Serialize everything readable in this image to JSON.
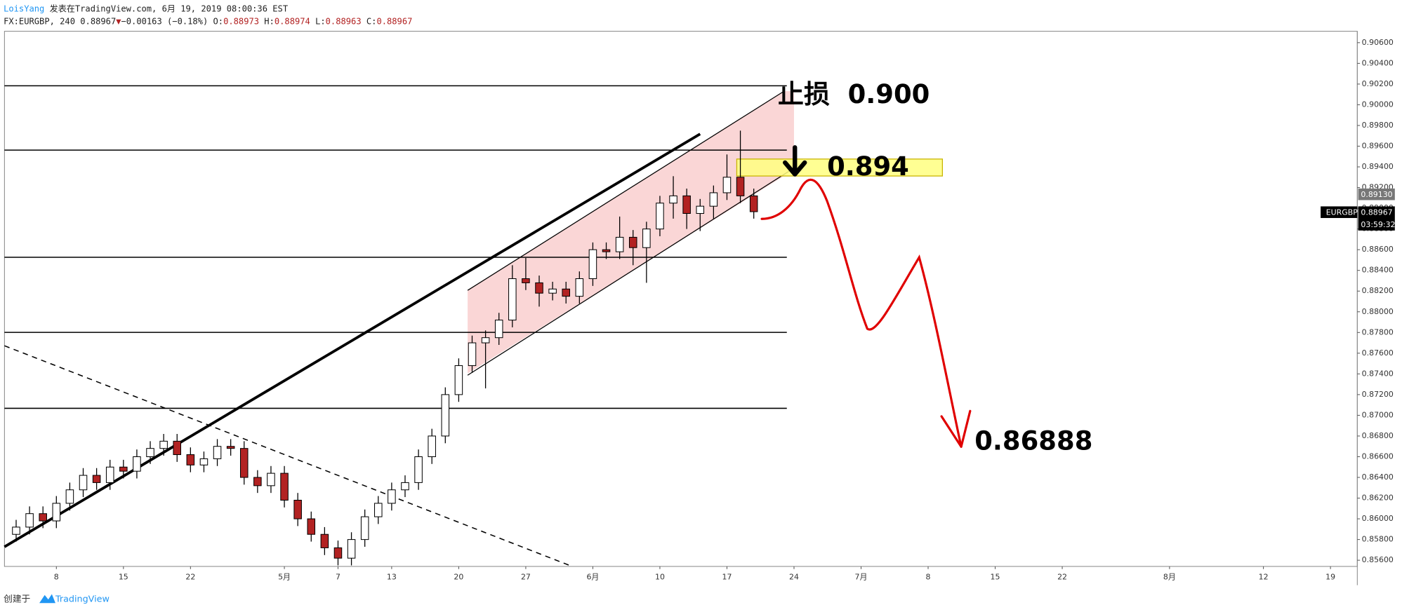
{
  "header": {
    "author": "LoisYang",
    "published": " 发表在TradingView.com, 6月 19, 2019 08:00:36 EST",
    "symbol": "FX:EURGBP, 240 0.88967",
    "arrow": "▼",
    "change": "−0.00163 (−0.18%)",
    "ohlc": [
      "O:",
      "0.88973",
      "H:",
      "0.88974",
      "L:",
      "0.88963",
      "C:",
      "0.88967"
    ]
  },
  "chart_data": {
    "type": "candlestick",
    "up_color": "#ffffff",
    "down_color": "#b22222",
    "wick_color": "#000000",
    "grid": false,
    "x": [
      -3,
      -2,
      -1,
      0,
      1,
      2,
      3,
      4,
      5,
      6,
      7,
      8,
      9,
      10,
      11,
      12,
      13,
      14,
      15,
      16,
      17,
      18,
      19,
      20,
      21,
      22,
      23,
      24,
      25,
      26,
      27,
      28,
      29,
      30,
      31,
      32,
      33,
      34,
      35,
      36,
      37,
      38,
      39,
      40,
      41,
      42,
      43,
      44,
      45,
      46,
      47,
      48,
      49,
      50,
      51,
      52
    ],
    "open": [
      0.8585,
      0.8592,
      0.8605,
      0.8598,
      0.8615,
      0.8628,
      0.8642,
      0.8635,
      0.865,
      0.8646,
      0.866,
      0.8668,
      0.8675,
      0.8662,
      0.8652,
      0.8658,
      0.867,
      0.8668,
      0.864,
      0.8632,
      0.8644,
      0.8618,
      0.86,
      0.8585,
      0.8572,
      0.8562,
      0.858,
      0.8602,
      0.8615,
      0.8628,
      0.8635,
      0.866,
      0.868,
      0.872,
      0.8748,
      0.877,
      0.8775,
      0.8792,
      0.8832,
      0.8828,
      0.8818,
      0.8822,
      0.8815,
      0.8832,
      0.886,
      0.8858,
      0.8872,
      0.8862,
      0.888,
      0.8905,
      0.8912,
      0.8895,
      0.8902,
      0.8915,
      0.893,
      0.8912
    ],
    "high": [
      0.8599,
      0.8612,
      0.8612,
      0.8622,
      0.8635,
      0.8649,
      0.8649,
      0.8657,
      0.8657,
      0.8667,
      0.8675,
      0.8682,
      0.8682,
      0.8669,
      0.8665,
      0.8677,
      0.8677,
      0.8675,
      0.8647,
      0.8651,
      0.8651,
      0.8625,
      0.8607,
      0.8592,
      0.8579,
      0.8587,
      0.8609,
      0.8622,
      0.8635,
      0.8642,
      0.8667,
      0.8687,
      0.8727,
      0.8755,
      0.8777,
      0.8782,
      0.8799,
      0.8845,
      0.8852,
      0.8835,
      0.8829,
      0.8829,
      0.8839,
      0.8867,
      0.8867,
      0.8892,
      0.8879,
      0.8887,
      0.8912,
      0.8931,
      0.8919,
      0.8909,
      0.8922,
      0.8952,
      0.8975,
      0.8919
    ],
    "low": [
      0.8578,
      0.8585,
      0.8591,
      0.8591,
      0.8608,
      0.8621,
      0.8628,
      0.8628,
      0.8639,
      0.8639,
      0.8653,
      0.8661,
      0.8655,
      0.8645,
      0.8645,
      0.8651,
      0.8661,
      0.8633,
      0.8625,
      0.8625,
      0.8611,
      0.8593,
      0.8578,
      0.8565,
      0.8555,
      0.8555,
      0.8573,
      0.8595,
      0.8608,
      0.8621,
      0.8628,
      0.8653,
      0.8673,
      0.8713,
      0.8741,
      0.8726,
      0.8768,
      0.8785,
      0.8821,
      0.8805,
      0.8811,
      0.8808,
      0.8808,
      0.8825,
      0.8851,
      0.8851,
      0.8845,
      0.8828,
      0.8873,
      0.889,
      0.888,
      0.8878,
      0.889,
      0.8908,
      0.8905,
      0.889
    ],
    "close": [
      0.8592,
      0.8605,
      0.8598,
      0.8615,
      0.8628,
      0.8642,
      0.8635,
      0.865,
      0.8646,
      0.866,
      0.8668,
      0.8675,
      0.8662,
      0.8652,
      0.8658,
      0.867,
      0.8668,
      0.864,
      0.8632,
      0.8644,
      0.8618,
      0.86,
      0.8585,
      0.8572,
      0.8562,
      0.858,
      0.8602,
      0.8615,
      0.8628,
      0.8635,
      0.866,
      0.868,
      0.872,
      0.8748,
      0.877,
      0.8775,
      0.8792,
      0.8832,
      0.8828,
      0.8818,
      0.8822,
      0.8815,
      0.8832,
      0.886,
      0.8858,
      0.8872,
      0.8862,
      0.888,
      0.8905,
      0.8912,
      0.8895,
      0.8902,
      0.8915,
      0.893,
      0.8912,
      0.88967
    ],
    "xlim": [
      -3.87,
      97
    ],
    "xticks": [
      {
        "value": 0,
        "label": "8"
      },
      {
        "value": 5,
        "label": "15"
      },
      {
        "value": 10,
        "label": "22"
      },
      {
        "value": 17,
        "label": "5月"
      },
      {
        "value": 21,
        "label": "7"
      },
      {
        "value": 25,
        "label": "13"
      },
      {
        "value": 30,
        "label": "20"
      },
      {
        "value": 35,
        "label": "27"
      },
      {
        "value": 40,
        "label": "6月"
      },
      {
        "value": 45,
        "label": "10"
      },
      {
        "value": 50,
        "label": "17"
      },
      {
        "value": 55,
        "label": "24"
      },
      {
        "value": 60,
        "label": "7月"
      },
      {
        "value": 65,
        "label": "8"
      },
      {
        "value": 70,
        "label": "15"
      },
      {
        "value": 75,
        "label": "22"
      },
      {
        "value": 83,
        "label": "8月"
      },
      {
        "value": 90,
        "label": "12"
      },
      {
        "value": 95,
        "label": "19"
      }
    ],
    "ylim": [
      0.8554,
      0.9071
    ],
    "yticks": [
      {
        "value": 0.856,
        "label": "0.85600"
      },
      {
        "value": 0.858,
        "label": "0.85800"
      },
      {
        "value": 0.86,
        "label": "0.86000"
      },
      {
        "value": 0.862,
        "label": "0.86200"
      },
      {
        "value": 0.864,
        "label": "0.86400"
      },
      {
        "value": 0.866,
        "label": "0.86600"
      },
      {
        "value": 0.868,
        "label": "0.86800"
      },
      {
        "value": 0.87,
        "label": "0.87000"
      },
      {
        "value": 0.872,
        "label": "0.87200"
      },
      {
        "value": 0.874,
        "label": "0.87400"
      },
      {
        "value": 0.876,
        "label": "0.87600"
      },
      {
        "value": 0.878,
        "label": "0.87800"
      },
      {
        "value": 0.88,
        "label": "0.88000"
      },
      {
        "value": 0.882,
        "label": "0.88200"
      },
      {
        "value": 0.884,
        "label": "0.88400"
      },
      {
        "value": 0.886,
        "label": "0.88600"
      },
      {
        "value": 0.888,
        "label": "0.88800"
      },
      {
        "value": 0.89,
        "label": "0.89000"
      },
      {
        "value": 0.892,
        "label": "0.89200"
      },
      {
        "value": 0.894,
        "label": "0.89400"
      },
      {
        "value": 0.896,
        "label": "0.89600"
      },
      {
        "value": 0.898,
        "label": "0.89800"
      },
      {
        "value": 0.9,
        "label": "0.90000"
      },
      {
        "value": 0.902,
        "label": "0.90200"
      },
      {
        "value": 0.904,
        "label": "0.90400"
      },
      {
        "value": 0.906,
        "label": "0.90600"
      }
    ]
  },
  "price_tags": {
    "high_tag": "0.89130",
    "symbol_tag": "EURGBP",
    "last_tag": "0.88967",
    "countdown": "03:59:32"
  },
  "annotations": {
    "stop_loss": "止损  0.900",
    "entry": "0.894",
    "target": "0.86888"
  },
  "footer": {
    "created": "创建于",
    "brand": "TradingView"
  }
}
